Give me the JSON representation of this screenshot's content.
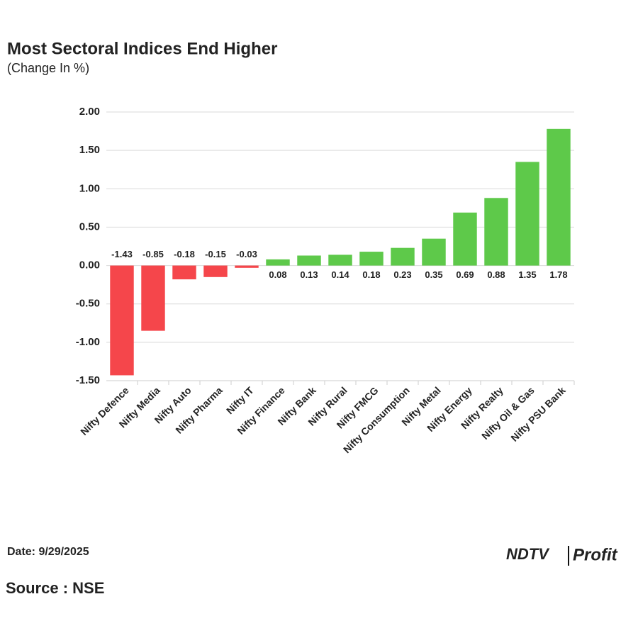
{
  "chart_data": {
    "type": "bar",
    "title": "Most Sectoral Indices End Higher",
    "subtitle": "(Change In %)",
    "categories": [
      "Nifty Defence",
      "Nifty Media",
      "Nifty Auto",
      "Nifty Pharma",
      "Nifty IT",
      "Nifty Finance",
      "Nifty Bank",
      "Nifty Rural",
      "Nifty FMCG",
      "Nifty Consumption",
      "Nifty Metal",
      "Nifty Energy",
      "Nifty Realty",
      "Nifty Oil & Gas",
      "Nifty PSU Bank"
    ],
    "values": [
      -1.43,
      -0.85,
      -0.18,
      -0.15,
      -0.03,
      0.08,
      0.13,
      0.14,
      0.18,
      0.23,
      0.35,
      0.69,
      0.88,
      1.35,
      1.78
    ],
    "colors": {
      "negative": "#f5464b",
      "positive": "#5ec94a"
    },
    "ylim": [
      -1.5,
      2
    ],
    "yticks": [
      {
        "value": -1.5,
        "label": "-1.50"
      },
      {
        "value": -1,
        "label": "-1.00"
      },
      {
        "value": -0.5,
        "label": "-0.50"
      },
      {
        "value": 0,
        "label": "0.00"
      },
      {
        "value": 0.5,
        "label": "0.50"
      },
      {
        "value": 1,
        "label": "1.00"
      },
      {
        "value": 1.5,
        "label": "1.50"
      },
      {
        "value": 2,
        "label": "2.00"
      }
    ],
    "grid": true
  },
  "footer": {
    "date": "Date: 9/29/2025",
    "source": "Source : NSE",
    "logo": {
      "left": "NDTV",
      "right": "Profit"
    }
  }
}
